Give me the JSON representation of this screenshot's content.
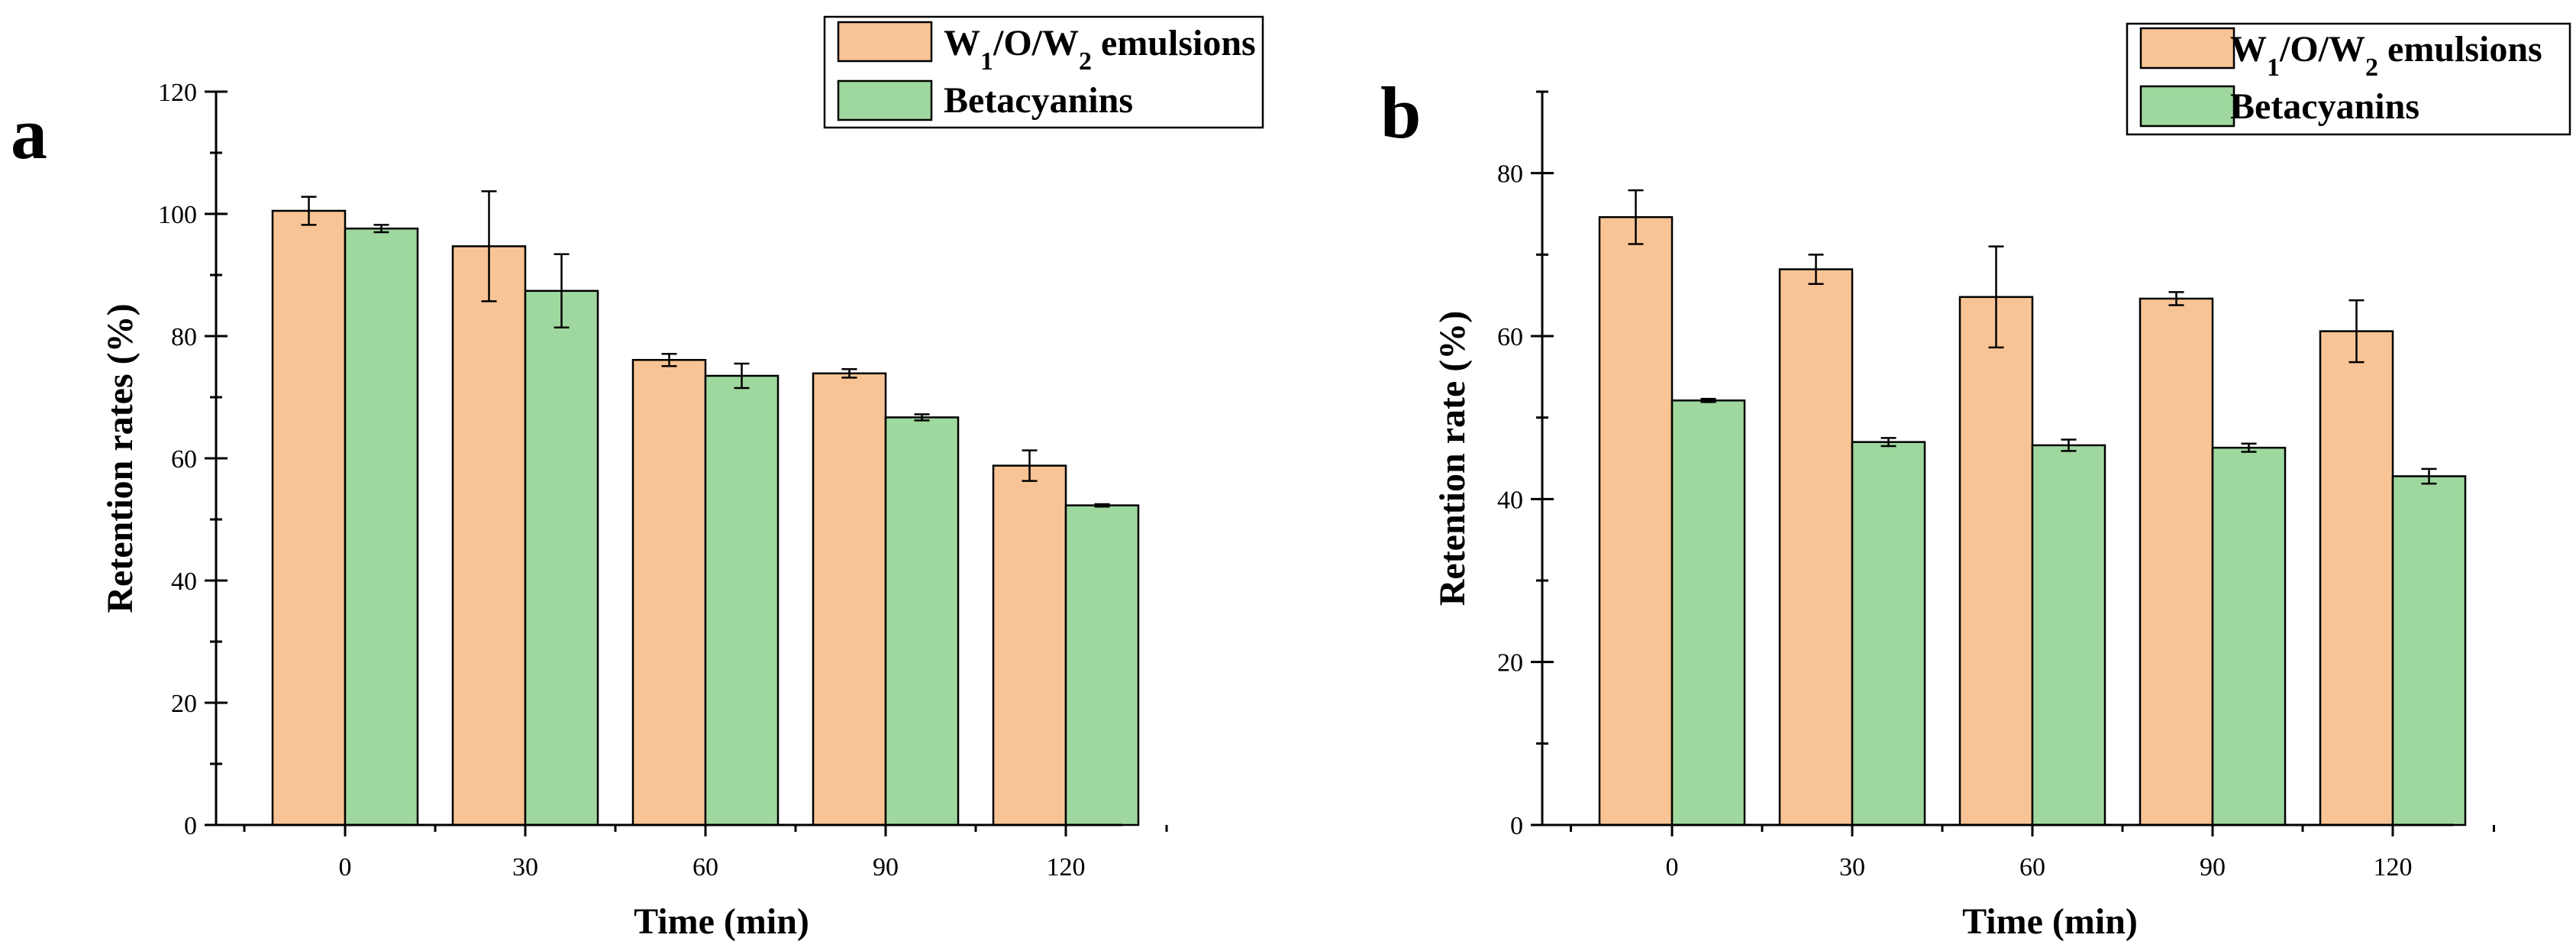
{
  "chart_data": [
    {
      "type": "bar",
      "panel_label": "a",
      "xlabel": "Time (min)",
      "ylabel": "Retention rates (%)",
      "categories": [
        "0",
        "30",
        "60",
        "90",
        "120"
      ],
      "ylim": [
        0,
        120
      ],
      "yticks": [
        "0",
        "20",
        "40",
        "60",
        "80",
        "100",
        "120"
      ],
      "legend_position": "top-right",
      "series": [
        {
          "name": "W1/O/W2 emulsions",
          "label_parts": [
            "W",
            "1",
            "/O/W",
            "2",
            " emulsions"
          ],
          "color": "#F9C495",
          "values": [
            100.5,
            94.7,
            76.1,
            73.9,
            58.8
          ],
          "errors": [
            2.3,
            9.0,
            1.0,
            0.7,
            2.5
          ]
        },
        {
          "name": "Betacyanins",
          "label_parts": [
            "Betacyanins"
          ],
          "color": "#9FD89E",
          "values": [
            97.6,
            87.4,
            73.5,
            66.7,
            52.3
          ],
          "errors": [
            0.6,
            6.0,
            2.0,
            0.5,
            0.2
          ]
        }
      ]
    },
    {
      "type": "bar",
      "panel_label": "b",
      "xlabel": "Time (min)",
      "ylabel": "Retention rate (%)",
      "categories": [
        "0",
        "30",
        "60",
        "90",
        "120"
      ],
      "ylim": [
        0,
        90
      ],
      "yticks": [
        "0",
        "20",
        "40",
        "60",
        "80"
      ],
      "legend_position": "top-right",
      "series": [
        {
          "name": "W1/O/W2 emulsions",
          "label_parts": [
            "W",
            "1",
            "/O/W",
            "2",
            " emulsions"
          ],
          "color": "#F9C495",
          "values": [
            74.6,
            68.2,
            64.8,
            64.6,
            60.6
          ],
          "errors": [
            3.3,
            1.8,
            6.2,
            0.8,
            3.8
          ]
        },
        {
          "name": "Betacyanins",
          "label_parts": [
            "Betacyanins"
          ],
          "color": "#9FD89E",
          "values": [
            52.1,
            47.0,
            46.6,
            46.3,
            42.8
          ],
          "errors": [
            0.2,
            0.5,
            0.7,
            0.5,
            0.9
          ]
        }
      ]
    }
  ]
}
